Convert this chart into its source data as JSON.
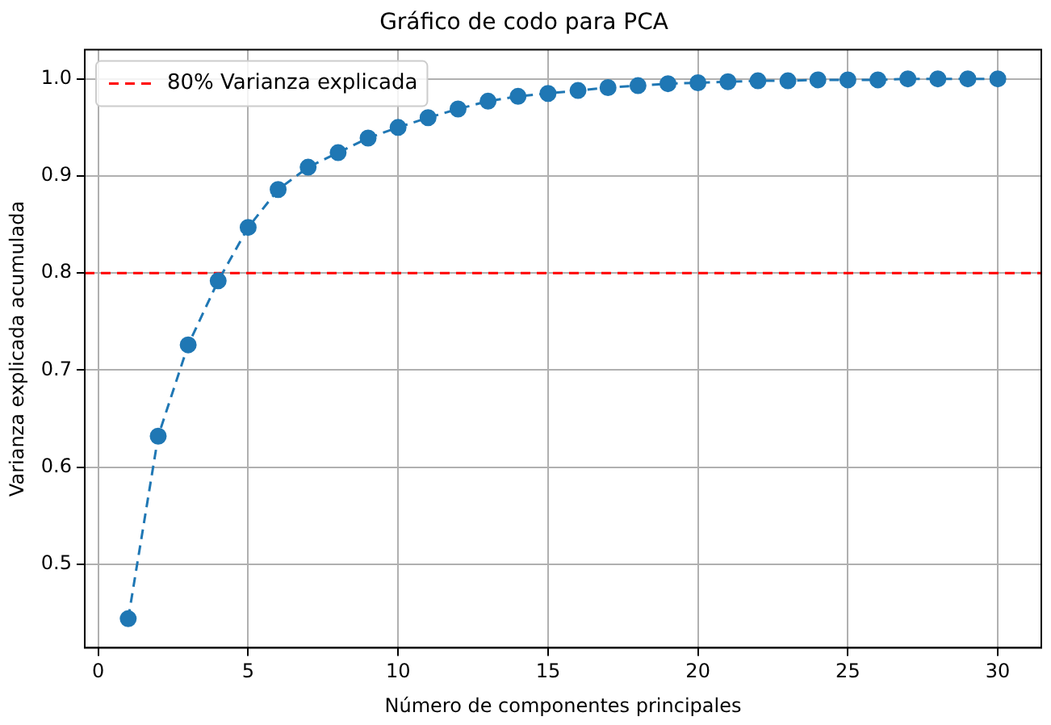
{
  "chart_data": {
    "type": "line",
    "title": "Gráfico de codo para PCA",
    "xlabel": "Número de componentes principales",
    "ylabel": "Varianza explicada acumulada",
    "x": [
      1,
      2,
      3,
      4,
      5,
      6,
      7,
      8,
      9,
      10,
      11,
      12,
      13,
      14,
      15,
      16,
      17,
      18,
      19,
      20,
      21,
      22,
      23,
      24,
      25,
      26,
      27,
      28,
      29,
      30
    ],
    "series": [
      {
        "color": "#1f77b4",
        "values": [
          0.444,
          0.632,
          0.726,
          0.792,
          0.847,
          0.886,
          0.909,
          0.924,
          0.939,
          0.95,
          0.96,
          0.969,
          0.977,
          0.982,
          0.985,
          0.988,
          0.991,
          0.993,
          0.995,
          0.996,
          0.997,
          0.998,
          0.998,
          0.999,
          0.999,
          0.999,
          1.0,
          1.0,
          1.0,
          1.0
        ]
      }
    ],
    "xlim": [
      -0.45,
      31.45
    ],
    "xticks": [
      0,
      5,
      10,
      15,
      20,
      25,
      30
    ],
    "ylim": [
      0.414,
      1.03
    ],
    "yticks": [
      0.5,
      0.6,
      0.7,
      0.8,
      0.9,
      {
        "value": 1,
        "label": "1.0"
      }
    ],
    "ref_lines": [
      {
        "axis": "y",
        "value": 0.8,
        "label": "80% Varianza explicada",
        "color": "#ff0000",
        "line_style": "dashed"
      }
    ],
    "grid": true,
    "legend": "top left",
    "marker": "circle",
    "line_style": "dashed"
  }
}
